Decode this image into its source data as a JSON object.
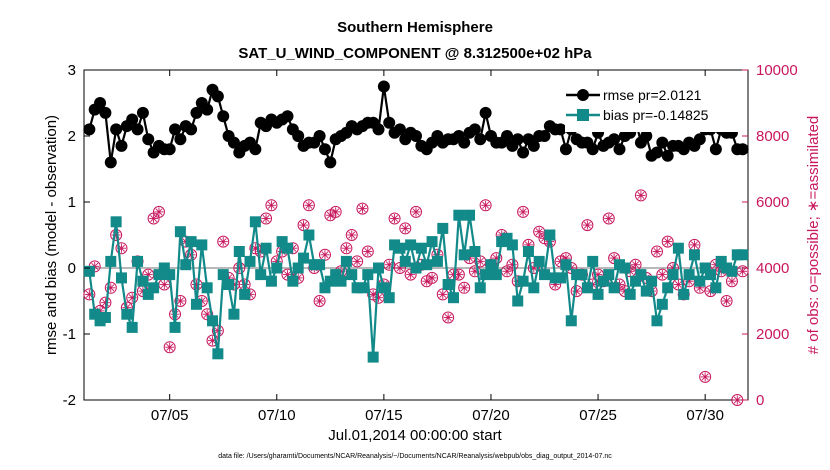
{
  "chart_data": {
    "type": "line",
    "title": "Southern Hemisphere",
    "subtitle": "SAT_U_WIND_COMPONENT @ 8.312500e+02 hPa",
    "xlabel": "Jul.01,2014 00:00:00 start",
    "ylabel_left": "rmse and bias (model - observation)",
    "ylabel_right": "# of obs: o=possible; ∗=assimilated",
    "xlim": [
      1,
      32
    ],
    "ylim_left": [
      -2,
      3
    ],
    "ylim_right": [
      0,
      10000
    ],
    "x_ticks": [
      5,
      10,
      15,
      20,
      25,
      30
    ],
    "x_tick_labels": [
      "07/05",
      "07/10",
      "07/15",
      "07/20",
      "07/25",
      "07/30"
    ],
    "y_ticks_left": [
      -2,
      -1,
      0,
      1,
      2,
      3
    ],
    "y_ticks_right": [
      0,
      2000,
      4000,
      6000,
      8000,
      10000
    ],
    "footer": "data file: /Users/gharamti/Documents/NCAR/Reanalysis/~/Documents/NCAR/Reanalysis/webpub/obs_diag_output_2014-07.nc",
    "colors": {
      "rmse": "#000000",
      "bias": "#138a8a",
      "obs": "#c8175e",
      "zero_line": "#b8b8b8"
    },
    "series": [
      {
        "name": "rmse",
        "legend": "rmse pr=2.0121",
        "x": [
          1.25,
          1.5,
          1.75,
          2.0,
          2.25,
          2.5,
          2.75,
          3.0,
          3.25,
          3.5,
          3.75,
          4.0,
          4.25,
          4.5,
          4.75,
          5.0,
          5.25,
          5.5,
          5.75,
          6.0,
          6.25,
          6.5,
          6.75,
          7.0,
          7.25,
          7.5,
          7.75,
          8.0,
          8.25,
          8.5,
          8.75,
          9.0,
          9.25,
          9.5,
          9.75,
          10.0,
          10.25,
          10.5,
          10.75,
          11.0,
          11.25,
          11.5,
          11.75,
          12.0,
          12.25,
          12.5,
          12.75,
          13.0,
          13.25,
          13.5,
          13.75,
          14.0,
          14.25,
          14.5,
          14.75,
          15.0,
          15.25,
          15.5,
          15.75,
          16.0,
          16.25,
          16.5,
          16.75,
          17.0,
          17.25,
          17.5,
          17.75,
          18.0,
          18.25,
          18.5,
          18.75,
          19.0,
          19.25,
          19.5,
          19.75,
          20.0,
          20.25,
          20.5,
          20.75,
          21.0,
          21.25,
          21.5,
          21.75,
          22.0,
          22.25,
          22.5,
          22.75,
          23.0,
          23.25,
          23.5,
          23.75,
          24.0,
          24.25,
          24.5,
          24.75,
          25.0,
          25.25,
          25.5,
          25.75,
          26.0,
          26.25,
          26.5,
          26.75,
          27.0,
          27.25,
          27.5,
          27.75,
          28.0,
          28.25,
          28.5,
          28.75,
          29.0,
          29.25,
          29.5,
          29.75,
          30.0,
          30.25,
          30.5,
          30.75,
          31.0,
          31.25,
          31.5,
          31.75
        ],
        "values": [
          2.1,
          2.4,
          2.5,
          2.35,
          1.6,
          2.1,
          1.85,
          2.15,
          2.25,
          2.1,
          2.35,
          1.95,
          1.75,
          1.85,
          1.8,
          1.8,
          2.1,
          1.95,
          2.15,
          2.1,
          2.35,
          2.5,
          2.4,
          2.7,
          2.6,
          2.3,
          2.0,
          1.9,
          1.75,
          1.85,
          1.9,
          1.8,
          2.2,
          2.15,
          2.25,
          2.2,
          2.25,
          2.3,
          2.1,
          2.0,
          1.85,
          1.9,
          1.9,
          2.0,
          1.8,
          1.6,
          1.95,
          2.0,
          2.05,
          2.15,
          2.1,
          2.15,
          2.2,
          2.2,
          2.1,
          2.75,
          2.2,
          2.05,
          2.1,
          1.95,
          2.05,
          2.0,
          1.85,
          1.8,
          1.9,
          2.0,
          1.9,
          1.95,
          1.95,
          2.0,
          1.9,
          2.05,
          2.1,
          1.95,
          2.35,
          2.0,
          1.9,
          1.9,
          2.0,
          1.85,
          1.95,
          1.75,
          1.95,
          1.85,
          2.0,
          2.0,
          2.15,
          2.1,
          2.1,
          1.8,
          2.1,
          1.95,
          1.9,
          1.9,
          1.8,
          2.05,
          1.85,
          1.9,
          1.95,
          1.8,
          2.0,
          2.05,
          2.25,
          1.9,
          2.0,
          1.7,
          1.75,
          1.9,
          1.7,
          1.85,
          1.85,
          1.8,
          1.9,
          1.85,
          1.95,
          2.1,
          2.1,
          1.8,
          2.1,
          2.05,
          2.05,
          1.8,
          1.8
        ],
        "marker": "circle"
      },
      {
        "name": "bias",
        "legend": "bias pr=-0.14825",
        "x": [
          1.25,
          1.5,
          1.75,
          2.0,
          2.25,
          2.5,
          2.75,
          3.0,
          3.25,
          3.5,
          3.75,
          4.0,
          4.25,
          4.5,
          4.75,
          5.0,
          5.25,
          5.5,
          5.75,
          6.0,
          6.25,
          6.5,
          6.75,
          7.0,
          7.25,
          7.5,
          7.75,
          8.0,
          8.25,
          8.5,
          8.75,
          9.0,
          9.25,
          9.5,
          9.75,
          10.0,
          10.25,
          10.5,
          10.75,
          11.0,
          11.25,
          11.5,
          11.75,
          12.0,
          12.25,
          12.5,
          12.75,
          13.0,
          13.25,
          13.5,
          13.75,
          14.0,
          14.25,
          14.5,
          14.75,
          15.0,
          15.25,
          15.5,
          15.75,
          16.0,
          16.25,
          16.5,
          16.75,
          17.0,
          17.25,
          17.5,
          17.75,
          18.0,
          18.25,
          18.5,
          18.75,
          19.0,
          19.25,
          19.5,
          19.75,
          20.0,
          20.25,
          20.5,
          20.75,
          21.0,
          21.25,
          21.5,
          21.75,
          22.0,
          22.25,
          22.5,
          22.75,
          23.0,
          23.25,
          23.5,
          23.75,
          24.0,
          24.25,
          24.5,
          24.75,
          25.0,
          25.25,
          25.5,
          25.75,
          26.0,
          26.25,
          26.5,
          26.75,
          27.0,
          27.25,
          27.5,
          27.75,
          28.0,
          28.25,
          28.5,
          28.75,
          29.0,
          29.25,
          29.5,
          29.75,
          30.0,
          30.25,
          30.5,
          30.75,
          31.0,
          31.25,
          31.5,
          31.75
        ],
        "values": [
          -0.05,
          -0.7,
          -0.8,
          -0.75,
          0.1,
          0.7,
          -0.15,
          -0.7,
          -0.9,
          0.1,
          -0.2,
          -0.4,
          -0.3,
          -0.1,
          0.0,
          -0.1,
          -0.9,
          0.55,
          0.05,
          0.4,
          -0.55,
          0.35,
          -0.3,
          -0.8,
          -1.3,
          -0.1,
          -0.25,
          -0.7,
          0.25,
          -0.4,
          0.1,
          0.7,
          -0.1,
          0.3,
          -0.2,
          0.0,
          0.4,
          0.3,
          -0.2,
          0.0,
          0.15,
          0.5,
          0.05,
          0.05,
          -0.3,
          -0.2,
          -0.1,
          -0.2,
          0.1,
          -0.1,
          -0.3,
          -0.3,
          -0.1,
          -1.35,
          0.0,
          -0.3,
          -0.45,
          0.35,
          0.3,
          0.1,
          0.35,
          0.0,
          0.3,
          0.05,
          0.4,
          0.1,
          0.6,
          -0.25,
          -0.45,
          0.8,
          0.2,
          0.8,
          0.25,
          -0.3,
          -0.1,
          0.05,
          -0.1,
          0.4,
          0.45,
          0.35,
          -0.5,
          -0.2,
          0.25,
          -0.3,
          0.1,
          -0.1,
          0.5,
          -0.15,
          -0.15,
          0.05,
          -0.8,
          -0.1,
          -0.1,
          -0.3,
          0.1,
          -0.4,
          -0.2,
          -0.1,
          -0.3,
          0.05,
          0.0,
          -0.4,
          -0.2,
          -0.1,
          -0.35,
          -0.2,
          -0.8,
          -0.55,
          -0.3,
          -0.1,
          0.3,
          -0.4,
          -0.1,
          0.2,
          -0.2,
          0.0,
          -0.1,
          -0.3,
          0.1,
          0.0,
          -0.05,
          0.2,
          0.2
        ],
        "marker": "square"
      },
      {
        "name": "obs possible / assimilated",
        "axis": "right",
        "x": [
          1.25,
          1.5,
          1.75,
          2.0,
          2.25,
          2.5,
          2.75,
          3.0,
          3.25,
          3.5,
          3.75,
          4.0,
          4.25,
          4.5,
          4.75,
          5.0,
          5.25,
          5.5,
          5.75,
          6.0,
          6.25,
          6.5,
          6.75,
          7.0,
          7.25,
          7.5,
          7.75,
          8.0,
          8.25,
          8.5,
          8.75,
          9.0,
          9.25,
          9.5,
          9.75,
          10.0,
          10.25,
          10.5,
          10.75,
          11.0,
          11.25,
          11.5,
          11.75,
          12.0,
          12.25,
          12.5,
          12.75,
          13.0,
          13.25,
          13.5,
          13.75,
          14.0,
          14.25,
          14.5,
          14.75,
          15.0,
          15.25,
          15.5,
          15.75,
          16.0,
          16.25,
          16.5,
          16.75,
          17.0,
          17.25,
          17.5,
          17.75,
          18.0,
          18.25,
          18.5,
          18.75,
          19.0,
          19.25,
          19.5,
          19.75,
          20.0,
          20.25,
          20.5,
          20.75,
          21.0,
          21.25,
          21.5,
          21.75,
          22.0,
          22.25,
          22.5,
          22.75,
          23.0,
          23.25,
          23.5,
          23.75,
          24.0,
          24.25,
          24.5,
          24.75,
          25.0,
          25.25,
          25.5,
          25.75,
          26.0,
          26.25,
          26.5,
          26.75,
          27.0,
          27.25,
          27.5,
          27.75,
          28.0,
          28.25,
          28.5,
          28.75,
          29.0,
          29.25,
          29.5,
          29.75,
          30.0,
          30.25,
          30.5,
          30.75,
          31.0,
          31.25,
          31.5,
          31.75
        ],
        "values": [
          3200,
          4050,
          2700,
          2950,
          3400,
          5000,
          4600,
          2800,
          3100,
          4200,
          3300,
          3800,
          5500,
          5700,
          3500,
          1600,
          2600,
          3000,
          4800,
          4400,
          3500,
          3000,
          2600,
          1800,
          2100,
          4800,
          3700,
          3500,
          4000,
          3500,
          3200,
          4600,
          4500,
          5500,
          5900,
          4200,
          4500,
          3800,
          4600,
          3700,
          5300,
          5900,
          4000,
          3000,
          4400,
          5600,
          5700,
          3900,
          4600,
          5000,
          4200,
          5800,
          4500,
          3200,
          3100,
          3500,
          4100,
          5500,
          4000,
          5200,
          3800,
          5700,
          4100,
          3600,
          3700,
          4400,
          3200,
          2500,
          3800,
          3800,
          3400,
          4300,
          3900,
          4200,
          5900,
          4100,
          4300,
          5000,
          3900,
          4100,
          3600,
          5700,
          4700,
          4000,
          5100,
          4900,
          4800,
          3500,
          4200,
          4300,
          4000,
          3300,
          3800,
          5300,
          3500,
          3800,
          3600,
          5500,
          4300,
          3500,
          3300,
          3900,
          4100,
          6200,
          3700,
          3300,
          4500,
          3800,
          4800,
          4000,
          3500,
          3200,
          3600,
          4700,
          3400,
          700,
          3300,
          4100,
          3900,
          3000,
          3600,
          0,
          3900
        ],
        "marker": "circle-asterisk"
      }
    ]
  }
}
